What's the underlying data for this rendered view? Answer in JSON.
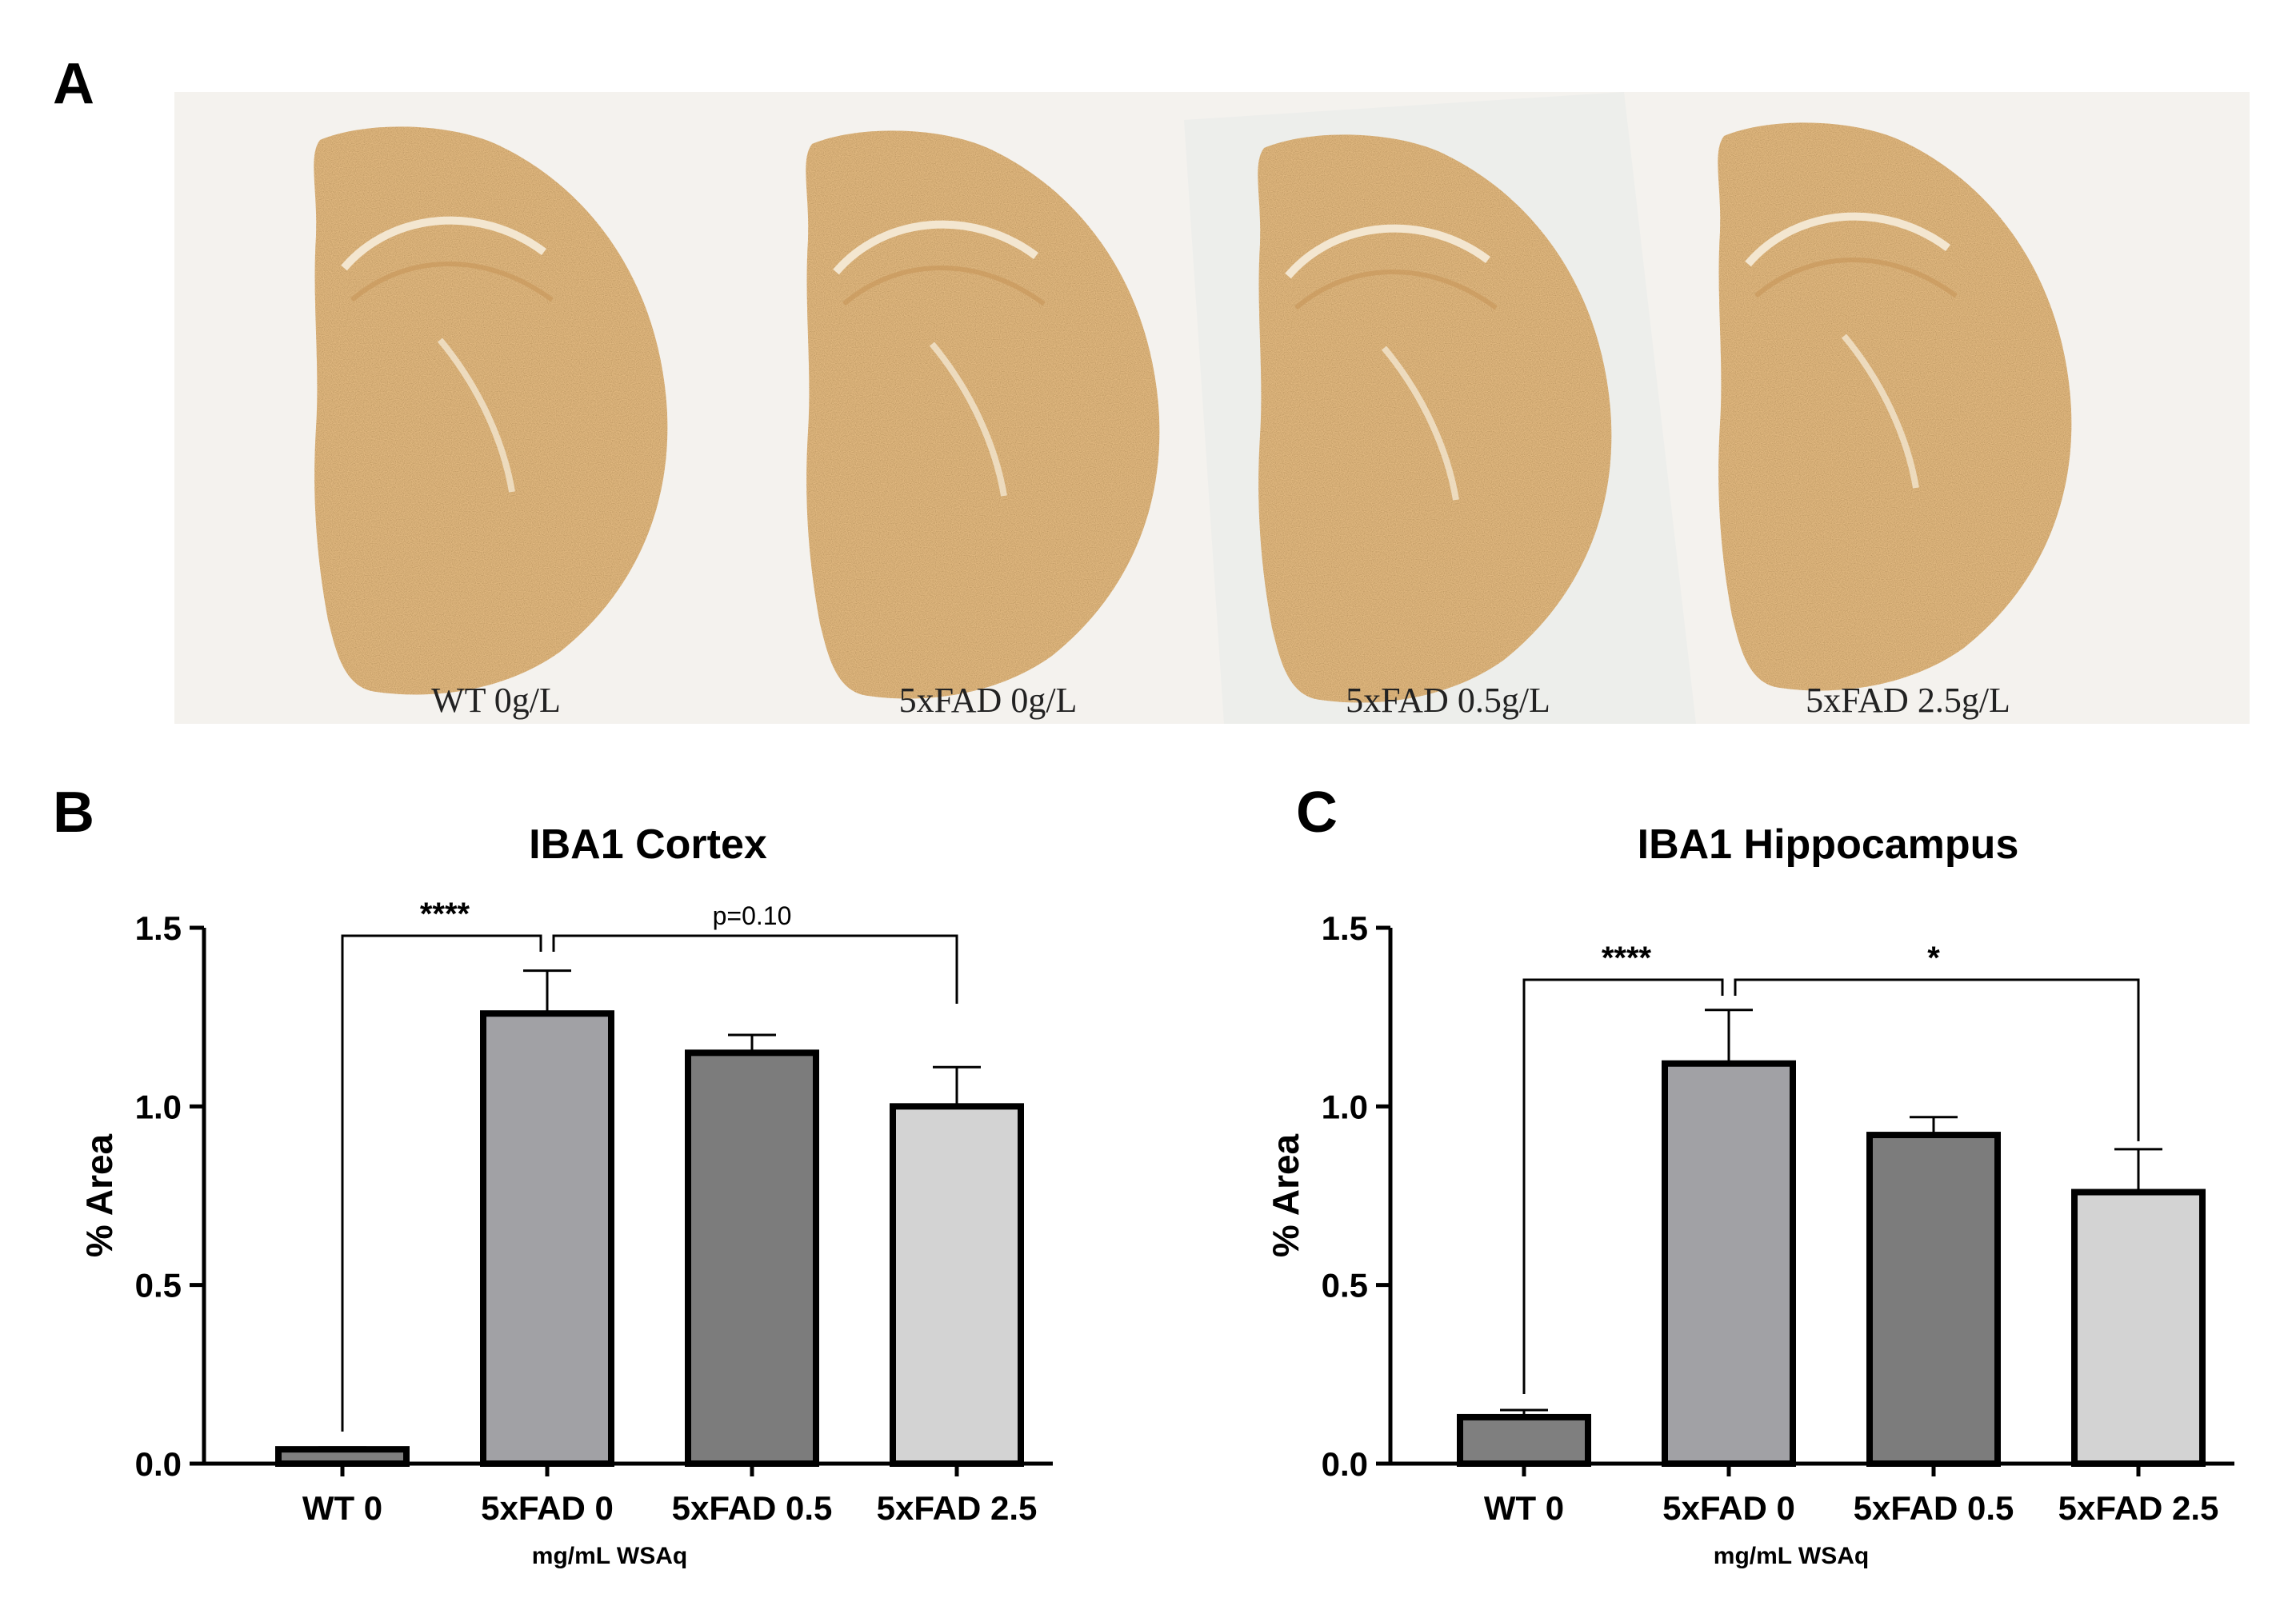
{
  "panels": {
    "a": "A",
    "b": "B",
    "c": "C"
  },
  "micrographs": {
    "labels": [
      "WT 0g/L",
      "5xFAD 0g/L",
      "5xFAD 0.5g/L",
      "5xFAD 2.5g/L"
    ],
    "colors": {
      "background": "#f4f2ee",
      "tissue": "#e0b77f",
      "stain": "#b07a3e"
    }
  },
  "chart_data": [
    {
      "type": "bar",
      "title": "IBA1 Cortex",
      "ylabel": "% Area",
      "xlabel": "mg/mL WSAq",
      "categories": [
        "WT 0",
        "5xFAD 0",
        "5xFAD 0.5",
        "5xFAD 2.5"
      ],
      "values": [
        0.04,
        1.26,
        1.15,
        1.0
      ],
      "errors": [
        0.005,
        0.12,
        0.05,
        0.11
      ],
      "colors": [
        "#7f7f7f",
        "#a1a1a5",
        "#7c7c7c",
        "#d3d3d3"
      ],
      "ylim": [
        0,
        1.5
      ],
      "yticks": [
        "0.0",
        "0.5",
        "1.0",
        "1.5"
      ],
      "significance": [
        {
          "from": 0,
          "to": 1,
          "label": "****"
        },
        {
          "from": 1,
          "to": 3,
          "label": "p=0.10"
        }
      ]
    },
    {
      "type": "bar",
      "title": "IBA1 Hippocampus",
      "ylabel": "% Area",
      "xlabel": "mg/mL WSAq",
      "categories": [
        "WT 0",
        "5xFAD 0",
        "5xFAD 0.5",
        "5xFAD 2.5"
      ],
      "values": [
        0.13,
        1.12,
        0.92,
        0.76
      ],
      "errors": [
        0.02,
        0.15,
        0.05,
        0.12
      ],
      "colors": [
        "#7f7f7f",
        "#a1a1a5",
        "#7c7c7c",
        "#d3d3d3"
      ],
      "ylim": [
        0,
        1.5
      ],
      "yticks": [
        "0.0",
        "0.5",
        "1.0",
        "1.5"
      ],
      "significance": [
        {
          "from": 0,
          "to": 1,
          "label": "****"
        },
        {
          "from": 1,
          "to": 3,
          "label": "*"
        }
      ]
    }
  ]
}
